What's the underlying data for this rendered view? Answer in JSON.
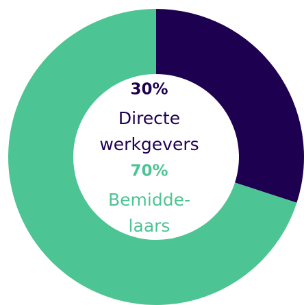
{
  "chart_data": {
    "type": "donut",
    "categories": [
      [
        "Directe",
        "werkgevers"
      ],
      [
        "Bemidde-",
        "laars"
      ]
    ],
    "values": [
      30,
      70
    ],
    "value_labels": [
      "30%",
      "70%"
    ],
    "colors": [
      "#1e0050",
      "#4dc493"
    ]
  }
}
